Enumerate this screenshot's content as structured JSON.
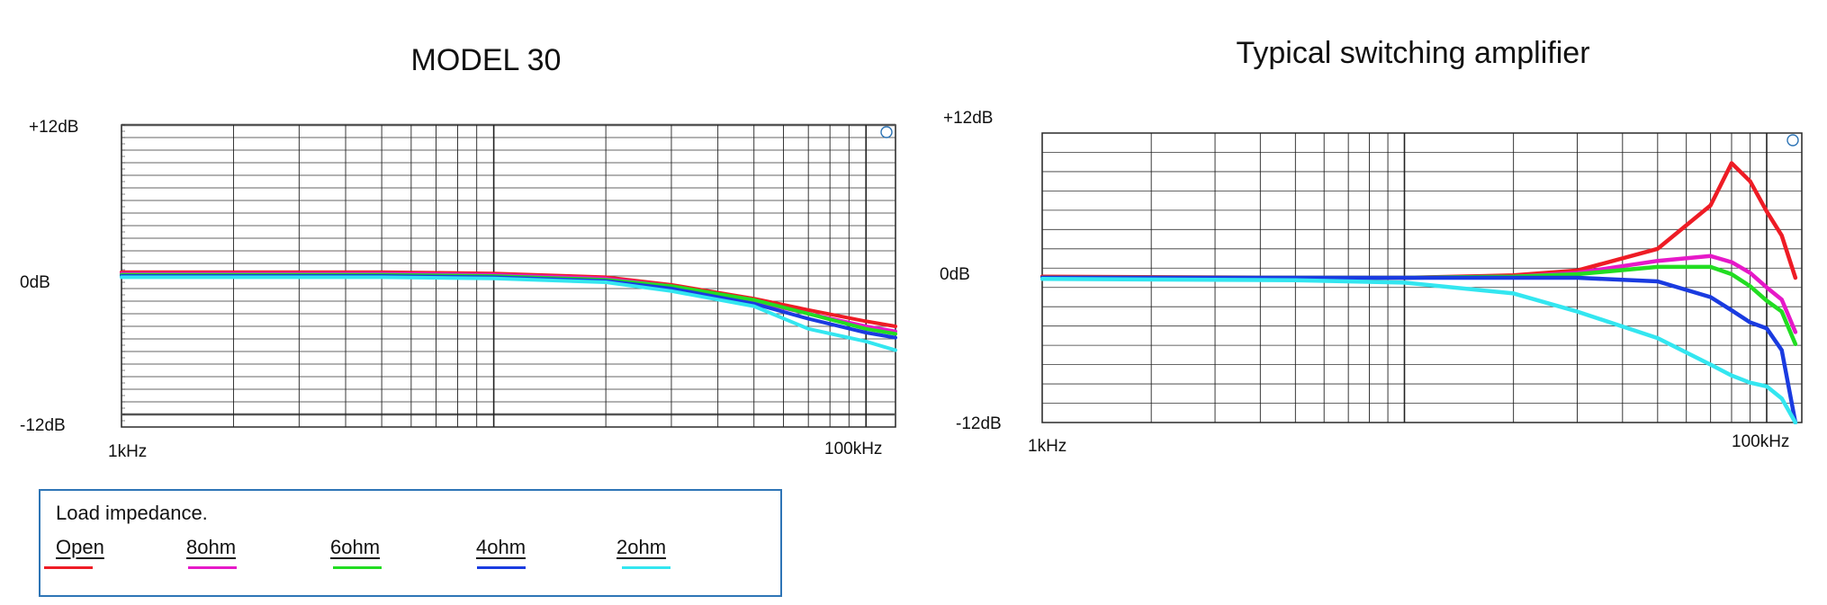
{
  "charts": [
    {
      "title": "MODEL 30",
      "y_max_label": "+12dB",
      "y_zero_label": "0dB",
      "y_min_label": "-12dB",
      "x_start_label": "1kHz",
      "x_end_label": "100kHz"
    },
    {
      "title": "Typical switching amplifier",
      "y_max_label": "+12dB",
      "y_zero_label": "0dB",
      "y_min_label": "-12dB",
      "x_start_label": "1kHz",
      "x_end_label": "100kHz"
    }
  ],
  "legend": {
    "title": "Load impedance.",
    "items": [
      {
        "label": "Open",
        "color": "#ee1c25"
      },
      {
        "label": "8ohm",
        "color": "#e619c8"
      },
      {
        "label": "6ohm",
        "color": "#22dd22"
      },
      {
        "label": "4ohm",
        "color": "#1a3be0"
      },
      {
        "label": "2ohm",
        "color": "#33e6f0"
      }
    ]
  },
  "chart_data": [
    {
      "type": "line",
      "title": "MODEL 30",
      "xlabel": "",
      "ylabel": "",
      "x_scale": "log",
      "x": [
        1,
        2,
        5,
        10,
        20,
        30,
        50,
        70,
        100,
        120
      ],
      "ylim": [
        -12,
        12
      ],
      "series": [
        {
          "name": "Open",
          "color": "#ee1c25",
          "values": [
            0.3,
            0.3,
            0.3,
            0.2,
            -0.1,
            -0.7,
            -1.8,
            -2.7,
            -3.6,
            -4.0
          ]
        },
        {
          "name": "8ohm",
          "color": "#e619c8",
          "values": [
            0.2,
            0.2,
            0.2,
            0.1,
            -0.2,
            -0.8,
            -2.0,
            -3.0,
            -4.0,
            -4.4
          ]
        },
        {
          "name": "6ohm",
          "color": "#22dd22",
          "values": [
            0.1,
            0.1,
            0.1,
            0.0,
            -0.3,
            -0.8,
            -1.9,
            -3.0,
            -4.2,
            -4.6
          ]
        },
        {
          "name": "4ohm",
          "color": "#1a3be0",
          "values": [
            0.0,
            0.0,
            0.0,
            -0.1,
            -0.4,
            -1.0,
            -2.2,
            -3.4,
            -4.5,
            -4.9
          ]
        },
        {
          "name": "2ohm",
          "color": "#33e6f0",
          "values": [
            -0.1,
            -0.1,
            -0.1,
            -0.2,
            -0.5,
            -1.2,
            -2.4,
            -4.2,
            -5.2,
            -5.9
          ]
        }
      ]
    },
    {
      "type": "line",
      "title": "Typical switching amplifier",
      "xlabel": "",
      "ylabel": "",
      "x_scale": "log",
      "x": [
        1,
        5,
        10,
        20,
        30,
        50,
        70,
        80,
        90,
        100,
        110,
        120
      ],
      "ylim": [
        -12,
        12
      ],
      "series": [
        {
          "name": "Open",
          "color": "#ee1c25",
          "values": [
            0.1,
            0.0,
            0.0,
            0.2,
            0.6,
            2.4,
            6.0,
            9.5,
            8.0,
            5.5,
            3.5,
            0.0
          ]
        },
        {
          "name": "8ohm",
          "color": "#e619c8",
          "values": [
            0.0,
            0.0,
            0.0,
            0.1,
            0.4,
            1.4,
            1.8,
            1.3,
            0.4,
            -0.8,
            -1.8,
            -4.5
          ]
        },
        {
          "name": "6ohm",
          "color": "#22dd22",
          "values": [
            0.0,
            0.0,
            0.0,
            0.1,
            0.3,
            0.9,
            0.9,
            0.3,
            -0.7,
            -1.9,
            -2.8,
            -5.5
          ]
        },
        {
          "name": "4ohm",
          "color": "#1a3be0",
          "values": [
            0.0,
            0.0,
            0.0,
            0.0,
            0.0,
            -0.3,
            -1.6,
            -2.7,
            -3.7,
            -4.2,
            -6.0,
            -12.0
          ]
        },
        {
          "name": "2ohm",
          "color": "#33e6f0",
          "values": [
            -0.1,
            -0.2,
            -0.4,
            -1.3,
            -2.8,
            -5.0,
            -7.2,
            -8.1,
            -8.7,
            -9.0,
            -10.0,
            -12.0
          ]
        }
      ]
    }
  ]
}
